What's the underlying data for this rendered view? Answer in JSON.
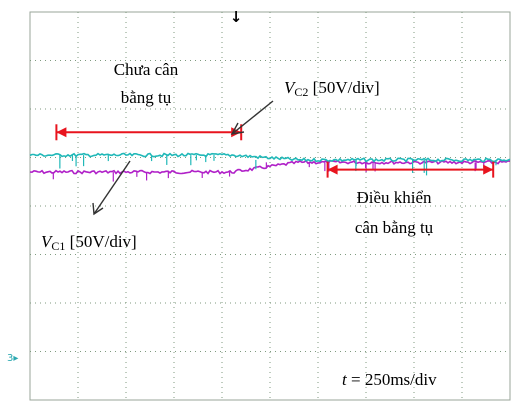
{
  "chart_data": {
    "type": "line",
    "grid": true,
    "x_divisions": 10,
    "y_divisions": 8,
    "time_per_div_ms": 250,
    "series": [
      {
        "name": "V_C2",
        "color": "#b020c8",
        "volts_per_div": 50,
        "level_before_div": 3.3,
        "level_after_div": 3.1
      },
      {
        "name": "V_C1",
        "color": "#20b8b8",
        "volts_per_div": 50,
        "level_before_div": 2.95,
        "level_after_div": 3.05
      }
    ],
    "annotations": {
      "unbalanced": {
        "line1": "Chưa cân",
        "line2": "bằng tụ",
        "from_div": 0.55,
        "to_div": 4.4
      },
      "balanced": {
        "line1": "Điều khiển",
        "line2": "cân bằng tụ",
        "from_div": 6.2,
        "to_div": 9.65
      },
      "vc2_label": {
        "var": "V",
        "sub": "C2",
        "text": " [50V/div]"
      },
      "vc1_label": {
        "var": "V",
        "sub": "C1",
        "text": " [50V/div]"
      },
      "time_label": {
        "var": "t",
        "text": " = 250ms/div"
      }
    },
    "trigger_marker": "↓",
    "channel_marker": "3▸"
  }
}
